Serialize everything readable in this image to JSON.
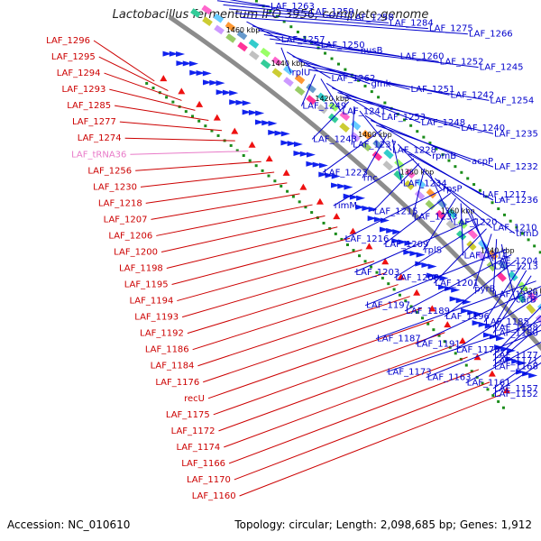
{
  "title": "Lactobacillus fermentum IFO 3956, complete genome",
  "footer": {
    "accession": "Accession: NC_010610",
    "summary": "Topology: circular; Length: 2,098,685 bp; Genes: 1,912"
  },
  "colors": {
    "left_label": "#cc0000",
    "right_label": "#0000cc",
    "trna_label": "#e87ac8",
    "backbone": "#8c8c8c",
    "dots": "#1a8c1a"
  },
  "ticks": [
    "1460 kbp",
    "1440 kbp",
    "1420 kbp",
    "1400 kbp",
    "1380 kbp",
    "1360 kbp",
    "1340 kbp",
    "1320 kbp",
    "1300 kbp"
  ],
  "left_labels": [
    "LAF_1296",
    "LAF_1295",
    "LAF_1294",
    "LAF_1293",
    "LAF_1285",
    "LAF_1277",
    "LAF_1274",
    "LAF_tRNA36",
    "LAF_1256",
    "LAF_1230",
    "LAF_1218",
    "LAF_1207",
    "LAF_1206",
    "LAF_1200",
    "LAF_1198",
    "LAF_1195",
    "LAF_1194",
    "LAF_1193",
    "LAF_1192",
    "LAF_1186",
    "LAF_1184",
    "LAF_1176",
    "recU",
    "LAF_1175",
    "LAF_1172",
    "LAF_1174",
    "LAF_1166",
    "LAF_1170",
    "LAF_1160"
  ],
  "right_labels": [
    "LAF_1263",
    "LAF_1259",
    "LAF_1258",
    "LAF_1284",
    "LAF_1275",
    "LAF_1266",
    "LAF_1257",
    "LAF_1250",
    "nusB",
    "LAF_1260",
    "LAF_1252",
    "LAF_1245",
    "rplU",
    "LAF_1262",
    "gmk",
    "LAF_1251",
    "LAF_1242",
    "LAF_1254",
    "LAF_1249",
    "LAF_1241",
    "LAF_1253",
    "LAF_1248",
    "LAF_1240",
    "LAF_1235",
    "LAF_1243",
    "LAF_1237",
    "LAF_1228",
    "rpmB",
    "acpP",
    "LAF_1232",
    "LAF_1223",
    "rnc",
    "LAF_1234",
    "rpsP",
    "LAF_1217",
    "LAF_1236",
    "rimM",
    "LAF_1215",
    "LAF_1233",
    "LAF_1220",
    "LAF_1210",
    "trmD",
    "LAF_1216",
    "LAF_1209",
    "rplS",
    "LAF_1214",
    "LAF_1204",
    "LAF_1213",
    "LAF_1203",
    "LAF_1208",
    "LAF_1201",
    "pyrB",
    "LAF_1199",
    "carB",
    "LAF_1197",
    "LAF_1189",
    "LAF_1196",
    "LAF_1185",
    "LAF_1188",
    "LAF_1180",
    "LAF_1187",
    "LAF_1191",
    "LAF_1178",
    "LAF_1177",
    "LAF_1171",
    "LAF_1168",
    "LAF_1173",
    "LAF_1163",
    "LAF_1161",
    "LAF_1157",
    "LAF_1152"
  ]
}
